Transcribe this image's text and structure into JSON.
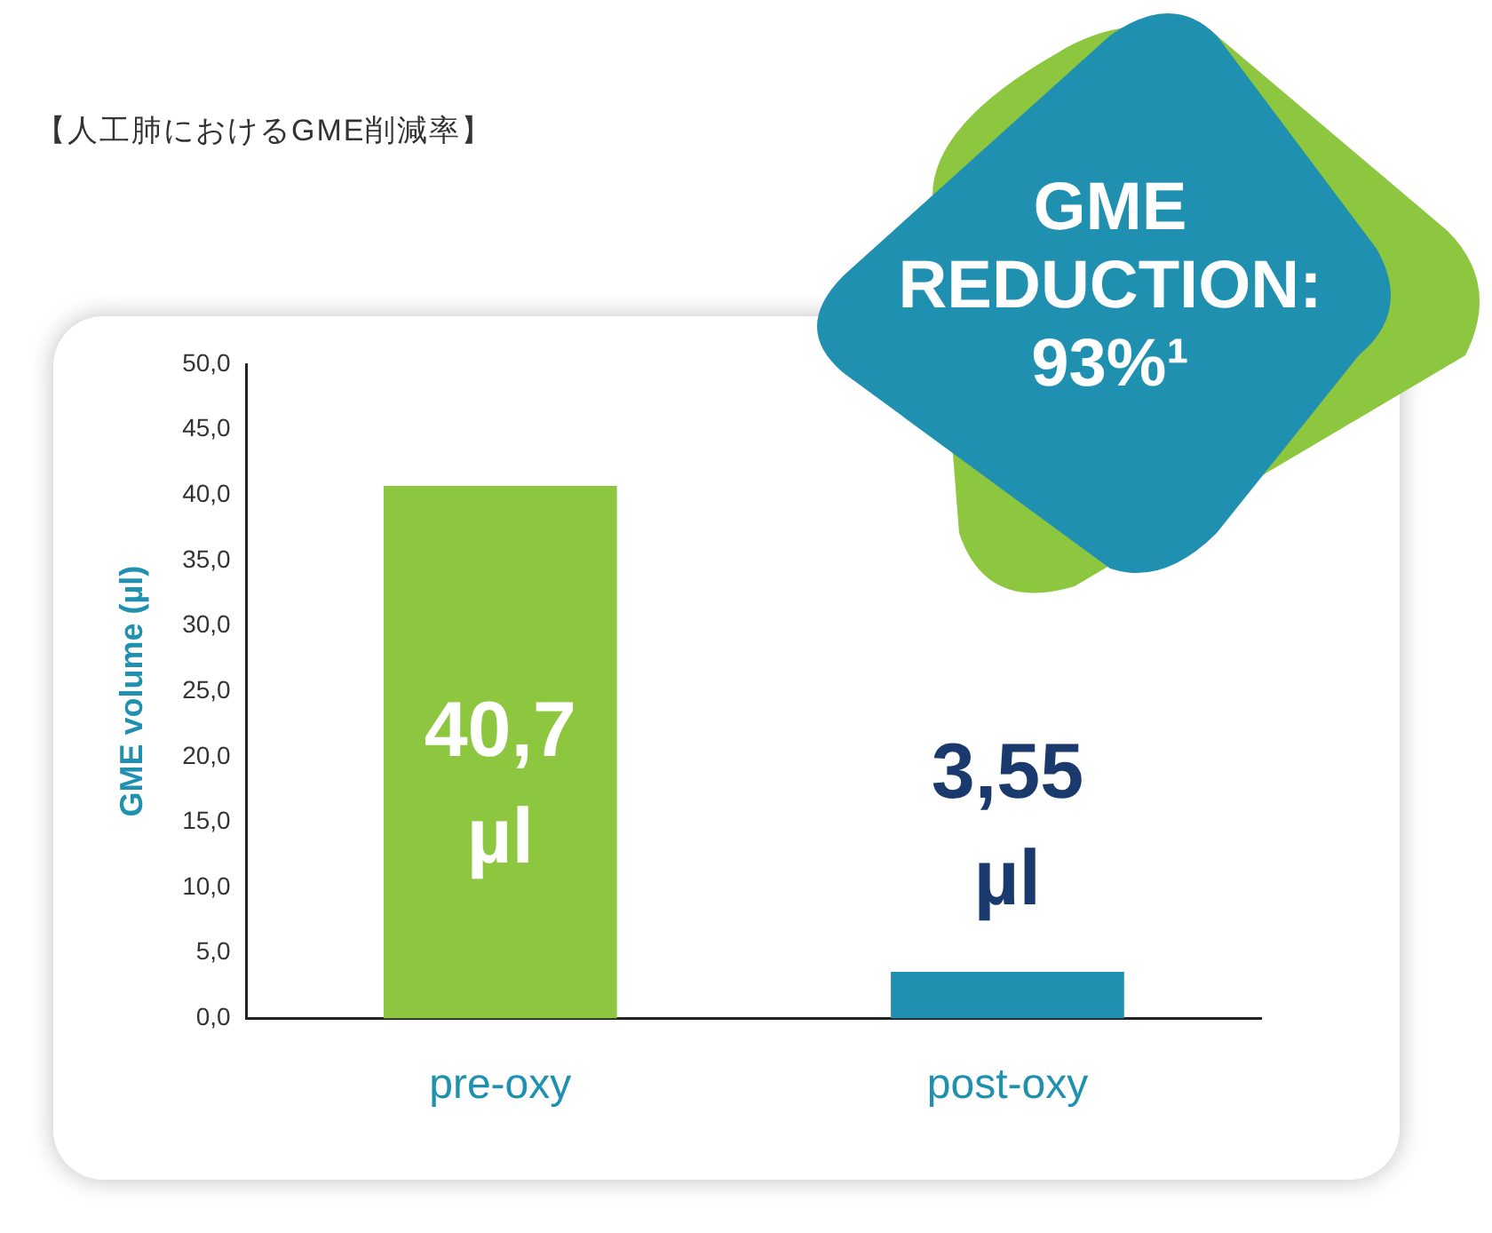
{
  "chart_data": {
    "type": "bar",
    "title": "【人工肺におけるGME削減率】",
    "ylabel": "GME volume (µl)",
    "categories": [
      "pre-oxy",
      "post-oxy"
    ],
    "values": [
      40.7,
      3.55
    ],
    "colors": [
      "#8dc63f",
      "#2090b0"
    ],
    "value_labels": [
      "40,7 µl",
      "3,55 µl"
    ],
    "ylim": [
      0,
      50
    ],
    "yticks": [
      {
        "value": 0,
        "label": "0,0"
      },
      {
        "value": 5,
        "label": "5,0"
      },
      {
        "value": 10,
        "label": "10,0"
      },
      {
        "value": 15,
        "label": "15,0"
      },
      {
        "value": 20,
        "label": "20,0"
      },
      {
        "value": 25,
        "label": "25,0"
      },
      {
        "value": 30,
        "label": "30,0"
      },
      {
        "value": 35,
        "label": "35,0"
      },
      {
        "value": 40,
        "label": "40,0"
      },
      {
        "value": 45,
        "label": "45,0"
      },
      {
        "value": 50,
        "label": "50,0"
      }
    ],
    "annotations": [
      "GME REDUCTION: 93%¹"
    ],
    "grid": false,
    "legend": false
  }
}
